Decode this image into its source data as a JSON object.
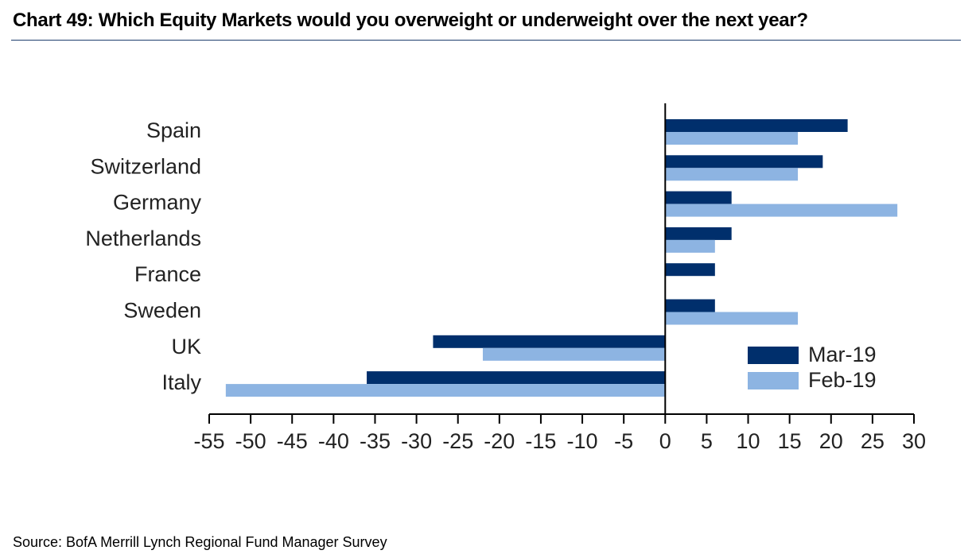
{
  "title": "Chart 49: Which Equity Markets would you overweight or underweight over the next year?",
  "source": "Source: BofA Merrill Lynch Regional Fund Manager Survey",
  "colors": {
    "mar19": "#002f6c",
    "feb19": "#8db4e2",
    "axis": "#000000"
  },
  "chart_data": {
    "type": "bar",
    "orientation": "horizontal",
    "title": "Chart 49: Which Equity Markets would you overweight or underweight over the next year?",
    "categories": [
      "Spain",
      "Switzerland",
      "Germany",
      "Netherlands",
      "France",
      "Sweden",
      "UK",
      "Italy"
    ],
    "series": [
      {
        "name": "Mar-19",
        "values": [
          22,
          19,
          8,
          8,
          6,
          6,
          -28,
          -36
        ]
      },
      {
        "name": "Feb-19",
        "values": [
          16,
          16,
          28,
          6,
          0,
          16,
          -22,
          -53
        ]
      }
    ],
    "xlim": [
      -55,
      30
    ],
    "xticks": [
      -55,
      -50,
      -45,
      -40,
      -35,
      -30,
      -25,
      -20,
      -15,
      -10,
      -5,
      0,
      5,
      10,
      15,
      20,
      25,
      30
    ],
    "xlabel": "",
    "ylabel": "",
    "grid": false,
    "legend": {
      "entries": [
        "Mar-19",
        "Feb-19"
      ],
      "position": "bottom-right"
    }
  }
}
